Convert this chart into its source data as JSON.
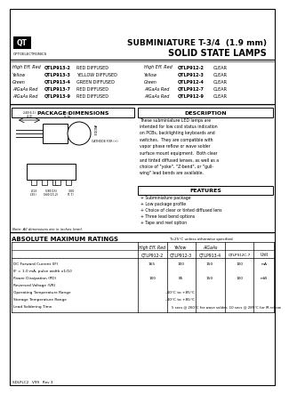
{
  "title_line1": "SUBMINIATURE T-3/4  (1.9 mm)",
  "title_line2": "SOLID STATE LAMPS",
  "logo_text": "QT",
  "company": "OPTOELECTRONICS",
  "part_table_left": [
    [
      "High Eff. Red",
      "QTLP913-2",
      "RED DIFFUSED"
    ],
    [
      "Yellow",
      "QTLP913-3",
      "YELLOW DIFFUSED"
    ],
    [
      "Green",
      "QTLP913-4",
      "GREEN DIFFUSED"
    ],
    [
      "AlGaAs Red",
      "QTLP913-7",
      "RED DIFFUSED"
    ],
    [
      "AlGaAs Red",
      "QTLP913-9",
      "RED DIFFUSED"
    ]
  ],
  "part_table_right": [
    [
      "High Eff. Red",
      "QTLP912-2",
      "CLEAR"
    ],
    [
      "Yellow",
      "QTLP912-3",
      "CLEAR"
    ],
    [
      "Green",
      "QTLP912-4",
      "CLEAR"
    ],
    [
      "AlGaAs Red",
      "QTLP912-7",
      "CLEAR"
    ],
    [
      "AlGaAs Red",
      "QTLP912-9",
      "CLEAR"
    ]
  ],
  "pkg_dim_title": "PACKAGE DIMENSIONS",
  "desc_title": "DESCRIPTION",
  "description_text": [
    "These subminiature LED lamps are",
    "intended for low cost status indication",
    "on PCBs, backlighting keyboards and",
    "switches.  They are compatible with",
    "vapor phase reflow or wave solder",
    "surface mount equipment.  Both clear",
    "and tinted diffused lenses, as well as a",
    "choice of \"yoke\", \"Z-bend\", or \"gull-",
    "wing\" lead bends are available."
  ],
  "features_title": "FEATURES",
  "features": [
    "+ Subminiature package",
    "+ Low package profile",
    "+ Choice of clear or tinted diffused lens",
    "+ Three lead bend options",
    "+ Tape and reel option"
  ],
  "abs_max_title": "ABSOLUTE MAXIMUM RATINGS",
  "abs_max_note": "T=25°C unless otherwise specified",
  "col_headers1": [
    "High Eff. Red",
    "Yellow",
    "AlGaAs"
  ],
  "col_headers2": [
    "QTLP912-2",
    "QTLP912-3",
    "QTLP913-4",
    "QTLP912C-7",
    "Unit"
  ],
  "abs_max_rows": [
    [
      "DC Forward Current (I F)",
      "165",
      "100",
      "150",
      "100",
      "mA"
    ],
    [
      "IF = 1.0 mA, pulse width x1/10",
      "",
      "",
      "",
      "",
      ""
    ],
    [
      "Power Dissipation (PD)",
      "100",
      "85",
      "150",
      "100",
      "mW"
    ],
    [
      "Reversed Voltage (VR)",
      "",
      "",
      "",
      "",
      ""
    ],
    [
      "Operating Temperature Range",
      "",
      "-40°C to +85°C",
      "",
      "",
      ""
    ],
    [
      "Storage Temperature Range",
      "",
      "-40°C to +85°C",
      "",
      "",
      ""
    ],
    [
      "Lead Soldering Time",
      "",
      "5 secs @ 260°C for wave solder, 10 secs @ 285°C for IR reflow",
      "",
      "",
      ""
    ]
  ],
  "footer": "SDLPLC2   V99   Rev 3",
  "bg_color": "#ffffff",
  "text_color": "#000000"
}
